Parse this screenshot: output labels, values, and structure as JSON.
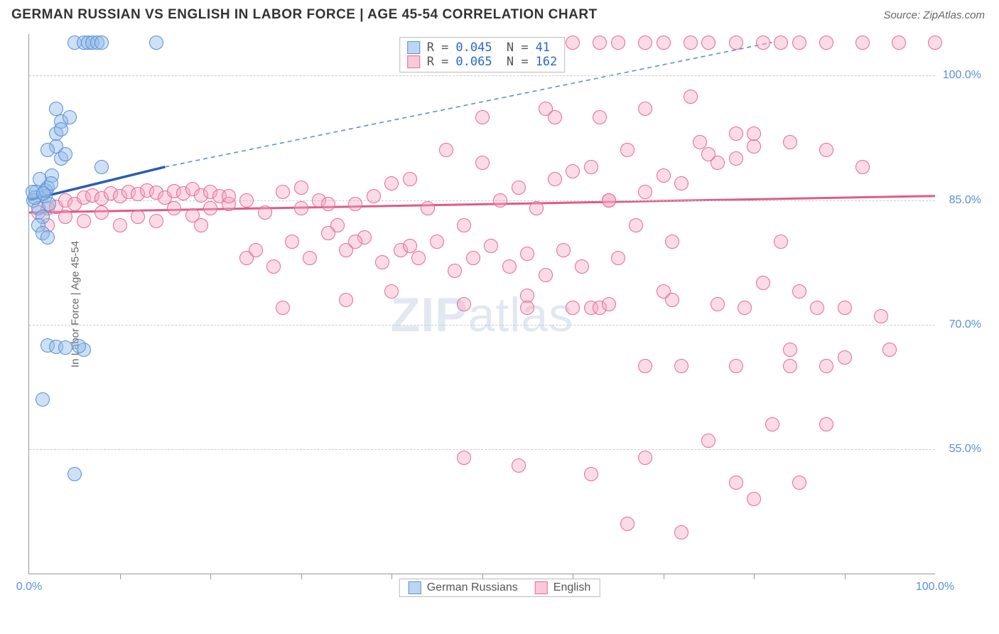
{
  "header": {
    "title": "GERMAN RUSSIAN VS ENGLISH IN LABOR FORCE | AGE 45-54 CORRELATION CHART",
    "source": "Source: ZipAtlas.com"
  },
  "chart": {
    "type": "scatter",
    "ylabel": "In Labor Force | Age 45-54",
    "watermark_bold": "ZIP",
    "watermark_rest": "atlas",
    "xlim": [
      0,
      100
    ],
    "ylim": [
      40,
      105
    ],
    "yticks": [
      {
        "v": 55.0,
        "label": "55.0%"
      },
      {
        "v": 70.0,
        "label": "70.0%"
      },
      {
        "v": 85.0,
        "label": "85.0%"
      },
      {
        "v": 100.0,
        "label": "100.0%"
      }
    ],
    "xticks_labels": [
      {
        "v": 0,
        "label": "0.0%"
      },
      {
        "v": 100,
        "label": "100.0%"
      }
    ],
    "xticks_minor": [
      10,
      20,
      30,
      40,
      50,
      60,
      70,
      80,
      90
    ],
    "legend_top": [
      {
        "marker": "blue",
        "r": "0.045",
        "n": " 41"
      },
      {
        "marker": "pink",
        "r": "0.065",
        "n": "162"
      }
    ],
    "legend_bottom": [
      {
        "marker": "blue",
        "label": "German Russians"
      },
      {
        "marker": "pink",
        "label": "English"
      }
    ],
    "colors": {
      "blue_line": "#2a5db0",
      "blue_dash": "#5b8fd6",
      "pink_line": "#e05a8a",
      "grid": "#cccccc",
      "axis": "#999999",
      "tick_label": "#5b8fd6",
      "bg": "#ffffff"
    },
    "trend_blue": {
      "solid_from": [
        0,
        85
      ],
      "solid_to": [
        15,
        89
      ],
      "dash_to": [
        82,
        104
      ]
    },
    "trend_pink": {
      "from": [
        0,
        83.5
      ],
      "to": [
        100,
        85.5
      ]
    },
    "blue_points": [
      [
        0.5,
        85
      ],
      [
        0.8,
        86
      ],
      [
        1,
        84
      ],
      [
        1.2,
        87.5
      ],
      [
        1.5,
        83
      ],
      [
        1.8,
        85.5
      ],
      [
        2,
        86.5
      ],
      [
        2.2,
        84.5
      ],
      [
        2.5,
        88
      ],
      [
        1,
        82
      ],
      [
        1.5,
        81
      ],
      [
        2,
        80.5
      ],
      [
        3,
        93
      ],
      [
        3,
        91.5
      ],
      [
        2,
        91
      ],
      [
        3.5,
        90
      ],
      [
        3,
        96
      ],
      [
        3.5,
        94.5
      ],
      [
        2,
        67.5
      ],
      [
        3,
        67.3
      ],
      [
        1.5,
        61
      ],
      [
        3.5,
        93.5
      ],
      [
        4.5,
        95
      ],
      [
        5,
        104
      ],
      [
        6,
        104
      ],
      [
        6.5,
        104
      ],
      [
        7,
        104
      ],
      [
        7.5,
        104
      ],
      [
        8,
        104
      ],
      [
        4,
        67.2
      ],
      [
        6,
        67
      ],
      [
        14,
        104
      ],
      [
        8,
        89
      ],
      [
        0.6,
        85.3
      ],
      [
        1.8,
        86.2
      ],
      [
        0.4,
        86
      ],
      [
        2.4,
        87
      ],
      [
        1.6,
        85.8
      ],
      [
        5,
        52
      ],
      [
        5.5,
        67.4
      ],
      [
        4,
        90.5
      ]
    ],
    "pink_points": [
      [
        1,
        83.5
      ],
      [
        2,
        84
      ],
      [
        3,
        84.2
      ],
      [
        4,
        85
      ],
      [
        5,
        84.5
      ],
      [
        6,
        85.3
      ],
      [
        7,
        85.6
      ],
      [
        8,
        85.2
      ],
      [
        9,
        85.8
      ],
      [
        10,
        85.5
      ],
      [
        11,
        86
      ],
      [
        12,
        85.7
      ],
      [
        13,
        86.2
      ],
      [
        14,
        85.9
      ],
      [
        15,
        85.3
      ],
      [
        16,
        86.1
      ],
      [
        17,
        85.8
      ],
      [
        18,
        86.3
      ],
      [
        19,
        85.6
      ],
      [
        20,
        86
      ],
      [
        21,
        85.5
      ],
      [
        2,
        82
      ],
      [
        4,
        83
      ],
      [
        6,
        82.5
      ],
      [
        8,
        83.5
      ],
      [
        10,
        82
      ],
      [
        12,
        83
      ],
      [
        14,
        82.5
      ],
      [
        16,
        84
      ],
      [
        18,
        83.2
      ],
      [
        22,
        84.5
      ],
      [
        24,
        85
      ],
      [
        26,
        83.5
      ],
      [
        28,
        86
      ],
      [
        30,
        84
      ],
      [
        32,
        85
      ],
      [
        34,
        82
      ],
      [
        36,
        84.5
      ],
      [
        38,
        85.5
      ],
      [
        40,
        87
      ],
      [
        42,
        87.5
      ],
      [
        44,
        84
      ],
      [
        46,
        91
      ],
      [
        48,
        82
      ],
      [
        50,
        89.5
      ],
      [
        52,
        85
      ],
      [
        54,
        86.5
      ],
      [
        56,
        84
      ],
      [
        58,
        87.5
      ],
      [
        60,
        88.5
      ],
      [
        62,
        89
      ],
      [
        64,
        85
      ],
      [
        66,
        91
      ],
      [
        68,
        86
      ],
      [
        70,
        88
      ],
      [
        72,
        87
      ],
      [
        74,
        92
      ],
      [
        76,
        89.5
      ],
      [
        78,
        90
      ],
      [
        80,
        91.5
      ],
      [
        25,
        79
      ],
      [
        27,
        77
      ],
      [
        29,
        80
      ],
      [
        31,
        78
      ],
      [
        33,
        81
      ],
      [
        35,
        79
      ],
      [
        37,
        80.5
      ],
      [
        39,
        77.5
      ],
      [
        41,
        79
      ],
      [
        43,
        78
      ],
      [
        45,
        80
      ],
      [
        47,
        76.5
      ],
      [
        49,
        78
      ],
      [
        51,
        79.5
      ],
      [
        53,
        77
      ],
      [
        55,
        78.5
      ],
      [
        57,
        76
      ],
      [
        59,
        79
      ],
      [
        61,
        77
      ],
      [
        65,
        78
      ],
      [
        28,
        72
      ],
      [
        35,
        73
      ],
      [
        40,
        74
      ],
      [
        48,
        72.5
      ],
      [
        55,
        73.5
      ],
      [
        62,
        72
      ],
      [
        70,
        74
      ],
      [
        76,
        72.5
      ],
      [
        60,
        104
      ],
      [
        63,
        104
      ],
      [
        65,
        104
      ],
      [
        68,
        104
      ],
      [
        70,
        104
      ],
      [
        73,
        104
      ],
      [
        75,
        104
      ],
      [
        78,
        104
      ],
      [
        81,
        104
      ],
      [
        83,
        104
      ],
      [
        85,
        104
      ],
      [
        88,
        104
      ],
      [
        92,
        104
      ],
      [
        96,
        104
      ],
      [
        100,
        104
      ],
      [
        57,
        96
      ],
      [
        63,
        95
      ],
      [
        68,
        96
      ],
      [
        73,
        97.5
      ],
      [
        78,
        93
      ],
      [
        75,
        90.5
      ],
      [
        80,
        93
      ],
      [
        84,
        92
      ],
      [
        88,
        91
      ],
      [
        92,
        89
      ],
      [
        68,
        65
      ],
      [
        72,
        65
      ],
      [
        78,
        65
      ],
      [
        84,
        65
      ],
      [
        88,
        65
      ],
      [
        48,
        54
      ],
      [
        54,
        53
      ],
      [
        75,
        56
      ],
      [
        82,
        58
      ],
      [
        88,
        58
      ],
      [
        68,
        54
      ],
      [
        62,
        52
      ],
      [
        78,
        51
      ],
      [
        85,
        51
      ],
      [
        80,
        49
      ],
      [
        55,
        72
      ],
      [
        63,
        72
      ],
      [
        71,
        73
      ],
      [
        90,
        72
      ],
      [
        94,
        71
      ],
      [
        72,
        45
      ],
      [
        66,
        46
      ],
      [
        64,
        85
      ],
      [
        67,
        82
      ],
      [
        71,
        80
      ],
      [
        30,
        86.5
      ],
      [
        33,
        84.5
      ],
      [
        36,
        80
      ],
      [
        24,
        78
      ],
      [
        42,
        79.5
      ],
      [
        20,
        84
      ],
      [
        22,
        85.5
      ],
      [
        19,
        82
      ],
      [
        50,
        95
      ],
      [
        58,
        95
      ],
      [
        64,
        72.5
      ],
      [
        60,
        72
      ],
      [
        83,
        80
      ],
      [
        85,
        74
      ],
      [
        87,
        72
      ],
      [
        90,
        66
      ],
      [
        95,
        67
      ],
      [
        81,
        75
      ],
      [
        84,
        67
      ],
      [
        79,
        72
      ]
    ]
  }
}
